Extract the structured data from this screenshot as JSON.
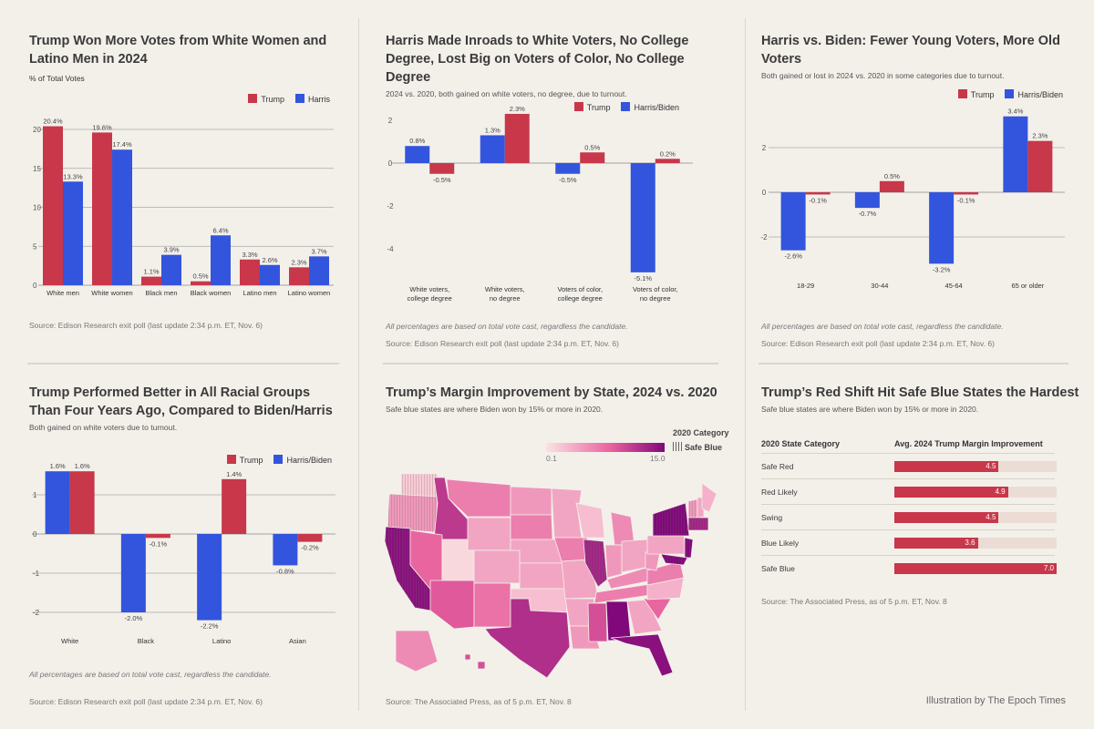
{
  "colors": {
    "trump": "#c8374a",
    "harris": "#3355dd",
    "background": "#f3f0ea",
    "scale_low": "#fbe3e3",
    "scale_mid": "#e8609e",
    "scale_high": "#80087a"
  },
  "panels": {
    "p1": {
      "title": "Trump Won More Votes from White Women and Latino Men in 2024",
      "subtitle": "% of Total Votes",
      "source": "Source: Edison Research exit poll (last update 2:34 p.m. ET, Nov. 6)"
    },
    "p2": {
      "title": "Harris Made Inroads to White Voters, No College Degree, Lost Big on Voters of Color, No College Degree",
      "subtitle": "2024 vs. 2020, both gained on white voters, no degree, due to turnout.",
      "note": "All percentages are based on total vote cast, regardless the candidate.",
      "source": "Source: Edison Research exit poll (last update 2:34 p.m. ET, Nov. 6)"
    },
    "p3": {
      "title": "Harris vs. Biden: Fewer Young Voters, More Old Voters",
      "subtitle": "Both gained or lost in 2024 vs. 2020 in some categories due to turnout.",
      "note": "All percentages are based on total vote cast, regardless the candidate.",
      "source": "Source: Edison Research exit poll (last update 2:34 p.m. ET, Nov. 6)"
    },
    "p4": {
      "title": "Trump Performed Better in All Racial Groups Than Four Years Ago, Compared to Biden/Harris",
      "subtitle": "Both gained on white voters due to turnout.",
      "note": "All percentages are based on total vote cast, regardless the candidate.",
      "source": "Source: Edison Research exit poll (last update 2:34 p.m. ET, Nov. 6)"
    },
    "p5": {
      "title": "Trump’s Margin Improvement by State, 2024 vs. 2020",
      "subtitle": "Safe blue states are where Biden won by 15% or more in 2020.",
      "legend_title": "2020 Category",
      "legend_hatch": "Safe Blue",
      "scale_min": "0.1",
      "scale_max": "15.0",
      "source": "Source: The Associated Press, as of 5 p.m. ET, Nov. 8"
    },
    "p6": {
      "title": "Trump’s Red Shift Hit Safe Blue States the Hardest",
      "subtitle": "Safe blue states are where Biden won by 15% or more in 2020.",
      "col1": "2020 State Category",
      "col2": "Avg. 2024 Trump Margin Improvement",
      "source": "Source: The Associated Press, as of 5 p.m. ET, Nov. 8"
    }
  },
  "credit": "Illustration by The Epoch Times",
  "chart_data": [
    {
      "type": "bar",
      "title": "Trump Won More Votes from White Women and Latino Men in 2024",
      "ylabel": "% of Total Votes",
      "categories": [
        "White men",
        "White women",
        "Black men",
        "Black women",
        "Latino men",
        "Latino women"
      ],
      "series": [
        {
          "name": "Trump",
          "color": "#c8374a",
          "values": [
            20.4,
            19.6,
            1.1,
            0.5,
            3.3,
            2.3
          ]
        },
        {
          "name": "Harris",
          "color": "#3355dd",
          "values": [
            13.3,
            17.4,
            3.9,
            6.4,
            2.6,
            3.7
          ]
        }
      ],
      "legend": [
        "Trump",
        "Harris"
      ],
      "ticks": [
        0,
        5,
        10,
        15,
        20
      ],
      "ylim": [
        0,
        21
      ],
      "grid": true,
      "legend_position": "top-right"
    },
    {
      "type": "bar",
      "title": "Harris Made Inroads to White Voters, No College Degree, Lost Big on Voters of Color, No College Degree",
      "categories": [
        [
          "White voters,",
          "college degree"
        ],
        [
          "White voters,",
          "no degree"
        ],
        [
          "Voters of color,",
          "college degree"
        ],
        [
          "Voters of color,",
          "no degree"
        ]
      ],
      "series": [
        {
          "name": "Harris/Biden",
          "color": "#3355dd",
          "values": [
            0.8,
            1.3,
            -0.5,
            -5.1
          ]
        },
        {
          "name": "Trump",
          "color": "#c8374a",
          "values": [
            -0.5,
            2.3,
            0.5,
            0.2
          ]
        }
      ],
      "legend": [
        "Trump",
        "Harris/Biden"
      ],
      "ticks": [
        2,
        0,
        -2,
        -4
      ],
      "ylim": [
        -5.4,
        2.6
      ],
      "grid": false,
      "legend_position": "top-right"
    },
    {
      "type": "bar",
      "title": "Harris vs. Biden: Fewer Young Voters, More Old Voters",
      "categories": [
        "18-29",
        "30-44",
        "45-64",
        "65 or older"
      ],
      "series": [
        {
          "name": "Harris/Biden",
          "color": "#3355dd",
          "values": [
            -2.6,
            -0.7,
            -3.2,
            3.4
          ]
        },
        {
          "name": "Trump",
          "color": "#c8374a",
          "values": [
            -0.1,
            0.5,
            -0.1,
            2.3
          ]
        }
      ],
      "legend": [
        "Trump",
        "Harris/Biden"
      ],
      "ticks": [
        2,
        0,
        -2
      ],
      "ylim": [
        -3.4,
        3.6
      ],
      "grid": true,
      "legend_position": "top-right"
    },
    {
      "type": "bar",
      "title": "Trump Performed Better in All Racial Groups Than Four Years Ago, Compared to Biden/Harris",
      "categories": [
        "White",
        "Black",
        "Latino",
        "Asian"
      ],
      "series": [
        {
          "name": "Harris/Biden",
          "color": "#3355dd",
          "values": [
            1.6,
            -2.0,
            -2.2,
            -0.8
          ]
        },
        {
          "name": "Trump",
          "color": "#c8374a",
          "values": [
            1.6,
            -0.1,
            1.4,
            -0.2
          ]
        }
      ],
      "legend": [
        "Trump",
        "Harris/Biden"
      ],
      "ticks": [
        1,
        0,
        -1,
        -2
      ],
      "ylim": [
        -2.3,
        1.7
      ],
      "grid": true,
      "legend_position": "top-right"
    },
    {
      "type": "table",
      "title": "Trump’s Red Shift Hit Safe Blue States the Hardest",
      "columns": [
        "2020 State Category",
        "Avg. 2024 Trump Margin Improvement"
      ],
      "rows": [
        {
          "label": "Safe Red",
          "value": 4.5,
          "text": "4.5"
        },
        {
          "label": "Red Likely",
          "value": 4.9,
          "text": "4.9"
        },
        {
          "label": "Swing",
          "value": 4.5,
          "text": "4.5"
        },
        {
          "label": "Blue Likely",
          "value": 3.6,
          "text": "3.6"
        },
        {
          "label": "Safe Blue",
          "value": 7.0,
          "text": "7.0"
        }
      ],
      "xlim": [
        0,
        7.0
      ]
    }
  ]
}
